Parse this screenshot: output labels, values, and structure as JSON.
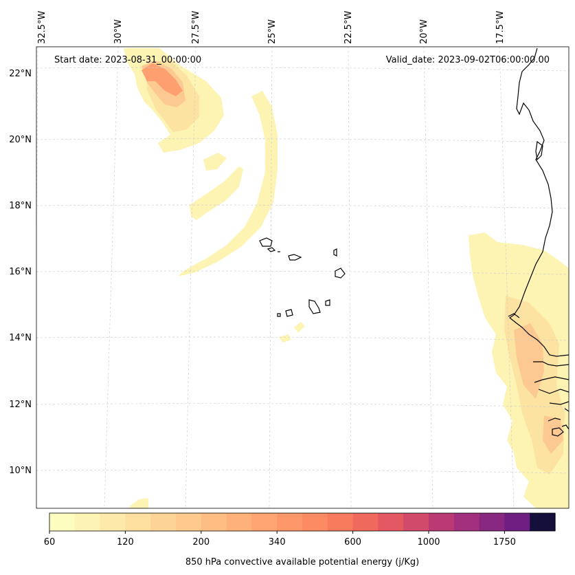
{
  "header": {
    "start_date": "Start date: 2023-08-31_00:00:00",
    "valid_date": "Valid_date: 2023-09-02T06:00:00.00"
  },
  "longitude_labels": [
    "32.5°W",
    "30°W",
    "27.5°W",
    "25°W",
    "22.5°W",
    "20°W",
    "17.5°W"
  ],
  "latitude_labels": [
    "22°N",
    "20°N",
    "18°N",
    "16°N",
    "14°N",
    "12°N",
    "10°N"
  ],
  "colorbar": {
    "tick_labels": [
      "60",
      "120",
      "200",
      "340",
      "600",
      "1000",
      "1750"
    ],
    "label": "850 hPa convective available potential energy (j/Kg)",
    "colors": [
      "#fcfdbf",
      "#fcf3b4",
      "#fde9a9",
      "#fddfa0",
      "#fdd496",
      "#fec98d",
      "#febd82",
      "#feb179",
      "#fea572",
      "#fe986a",
      "#fc8a62",
      "#f77b5c",
      "#ef6a5d",
      "#e35862",
      "#d24a6b",
      "#bc3a74",
      "#a3307e",
      "#892881",
      "#6f1f81",
      "#150f3c"
    ]
  },
  "map": {
    "coastline_color": "#000000",
    "gridline_color": "#cccccc",
    "fill_palette": [
      "#fdf5b5",
      "#fde9a6",
      "#fdd59a",
      "#feb37c",
      "#fe9e6d"
    ]
  }
}
